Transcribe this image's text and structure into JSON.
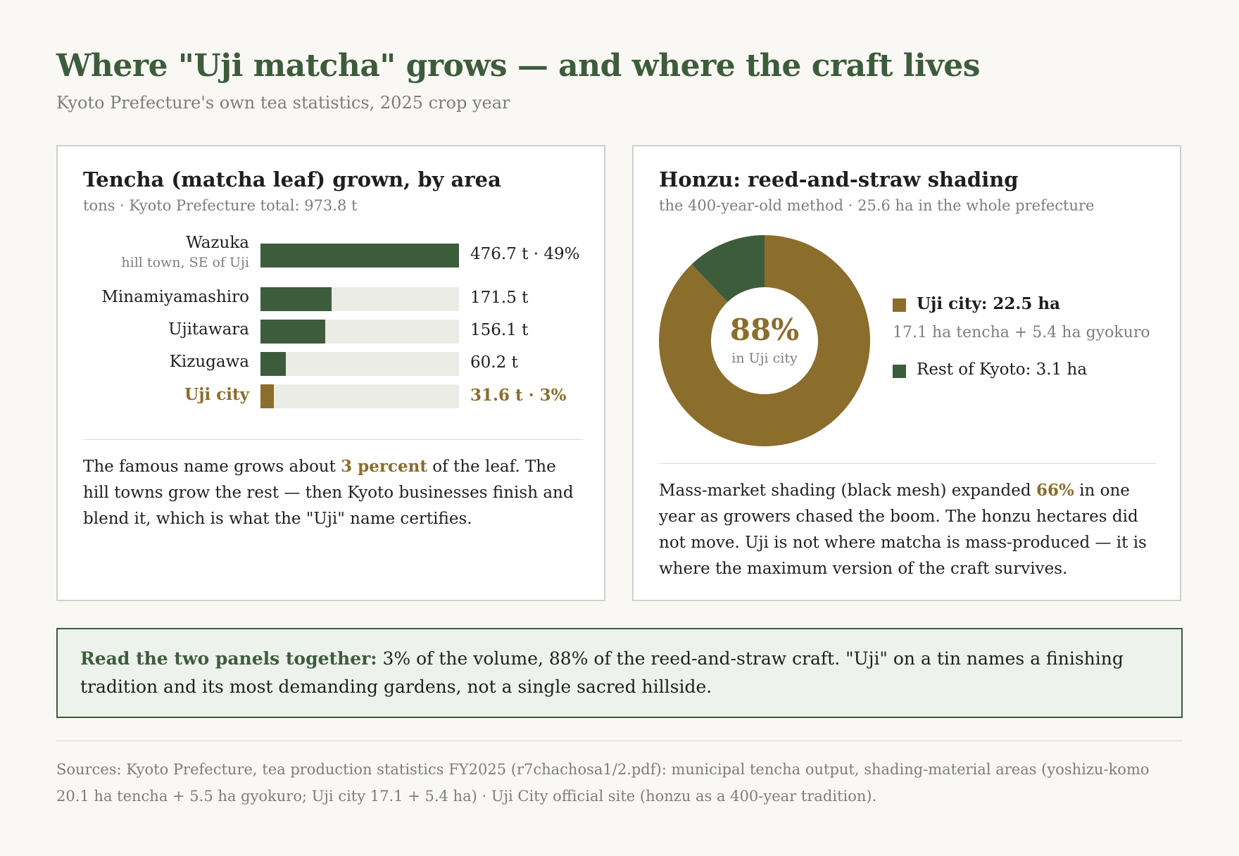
{
  "header": {
    "title": "Where \"Uji matcha\" grows — and where the craft lives",
    "subtitle": "Kyoto Prefecture's own tea statistics, 2025 crop year"
  },
  "left_panel": {
    "title": "Tencha (matcha leaf) grown, by area",
    "subtitle": "tons · Kyoto Prefecture total: 973.8 t",
    "text_before": "The famous name grows about ",
    "text_highlight": "3 percent",
    "text_after": " of the leaf. The hill towns grow the rest — then Kyoto businesses finish and blend it, which is what the \"Uji\" name certifies."
  },
  "right_panel": {
    "title": "Honzu: reed-and-straw shading",
    "subtitle": "the 400-year-old method · 25.6 ha in the whole prefecture",
    "donut_center_value": "88%",
    "donut_center_label": "in Uji city",
    "legend": [
      {
        "label": "Uji city: 22.5 ha",
        "note": "17.1 ha tencha + 5.4 ha gyokuro"
      },
      {
        "label": "Rest of Kyoto: 3.1 ha"
      }
    ],
    "text_before": "Mass-market shading (black mesh) expanded ",
    "text_highlight": "66%",
    "text_after": " in one year as growers chased the boom. The honzu hectares did not move. Uji is not where matcha is mass-produced — it is where the maximum version of the craft survives."
  },
  "callout": {
    "lead": "Read the two panels together:",
    "text": " 3% of the volume, 88% of the reed-and-straw craft. \"Uji\" on a tin names a finishing tradition and its most demanding gardens, not a single sacred hillside."
  },
  "sources": "Sources: Kyoto Prefecture, tea production statistics FY2025 (r7chachosa1/2.pdf): municipal tencha output, shading-material areas (yoshizu-komo 20.1 ha tencha + 5.5 ha gyokuro; Uji city 17.1 + 5.4 ha) · Uji City official site (honzu as a 400-year tradition).",
  "colors": {
    "green": "#3d5c3c",
    "gold": "#8b6d2c",
    "track": "#ecece6",
    "callout_bg": "#edf2ec"
  },
  "chart_data": [
    {
      "type": "bar",
      "orientation": "horizontal",
      "unit": "t",
      "total": 973.8,
      "xlim": [
        0,
        476.7
      ],
      "categories": [
        "Wazuka",
        "Minamiyamashiro",
        "Ujitawara",
        "Kizugawa",
        "Uji city"
      ],
      "category_notes": [
        "hill town, SE of Uji",
        "",
        "",
        "",
        ""
      ],
      "values": [
        476.7,
        171.5,
        156.1,
        60.2,
        31.6
      ],
      "value_labels": [
        "476.7 t · 49%",
        "171.5 t",
        "156.1 t",
        "60.2 t",
        "31.6 t · 3%"
      ],
      "highlight": "Uji city"
    },
    {
      "type": "pie",
      "donut": true,
      "unit": "ha",
      "total": 25.6,
      "slices": [
        {
          "name": "Uji city",
          "value": 22.5,
          "color": "#8b6d2c"
        },
        {
          "name": "Rest of Kyoto",
          "value": 3.1,
          "color": "#3d5c3c"
        }
      ]
    }
  ]
}
